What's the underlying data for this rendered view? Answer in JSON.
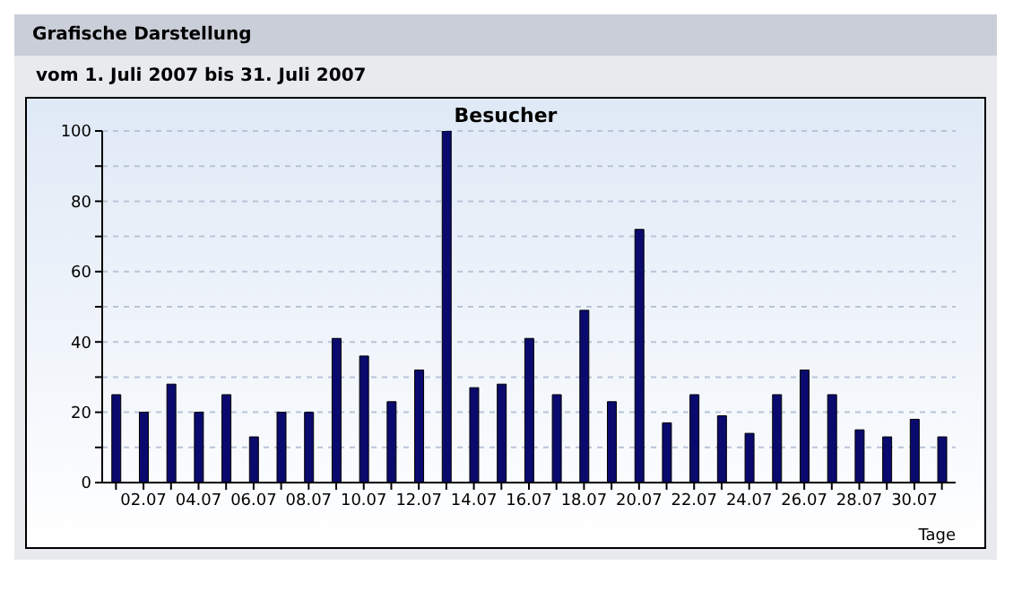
{
  "chart_data": {
    "type": "bar",
    "title": "Besucher",
    "subtitle": "vom 1. Juli 2007  bis 31. Juli 2007",
    "annotations": [
      "Grafische Darstellung"
    ],
    "xlabel": "Tage",
    "categories": [
      null,
      "02.07",
      null,
      "04.07",
      null,
      "06.07",
      null,
      "08.07",
      null,
      "10.07",
      null,
      "12.07",
      null,
      "14.07",
      null,
      "16.07",
      null,
      "18.07",
      null,
      "20.07",
      null,
      "22.07",
      null,
      "24.07",
      null,
      "26.07",
      null,
      "28.07",
      null,
      "30.07",
      null
    ],
    "values": [
      25,
      20,
      28,
      20,
      25,
      13,
      20,
      20,
      41,
      36,
      23,
      32,
      100,
      27,
      28,
      41,
      25,
      49,
      23,
      72,
      17,
      25,
      19,
      14,
      25,
      32,
      25,
      15,
      13,
      18,
      13
    ],
    "color": "#0a0a6e",
    "ylim": [
      0,
      100
    ],
    "yticks": [
      0,
      {
        "value": 10,
        "label": null
      },
      20,
      {
        "value": 30,
        "label": null
      },
      40,
      {
        "value": 50,
        "label": null
      },
      60,
      {
        "value": 70,
        "label": null
      },
      80,
      {
        "value": 90,
        "label": null
      },
      100
    ],
    "grid": "y"
  }
}
